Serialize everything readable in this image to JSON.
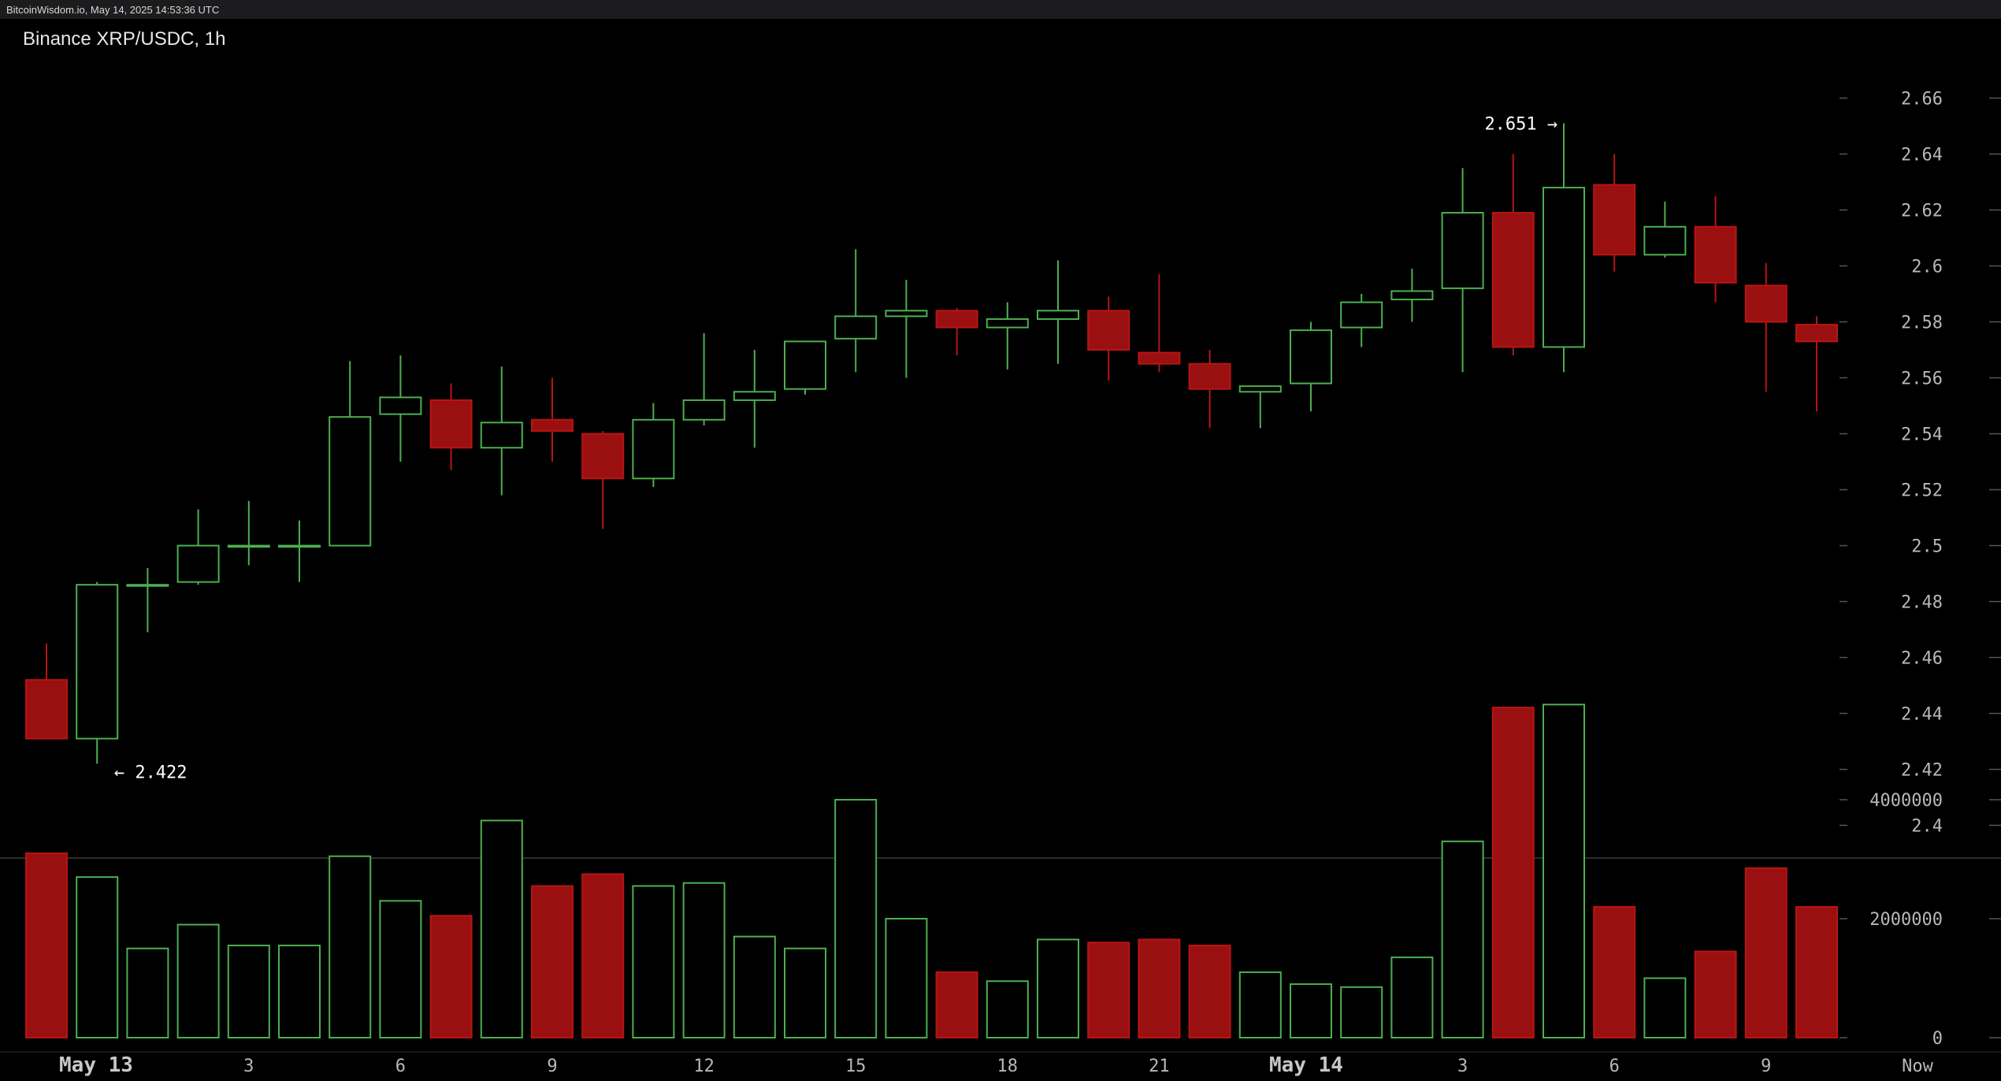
{
  "topbar": {
    "text": "BitcoinWisdom.io, May 14, 2025 14:53:36 UTC"
  },
  "chart_data": {
    "type": "candlestick",
    "title": "Binance XRP/USDC, 1h",
    "colors": {
      "up": "#4caf50",
      "down": "#b71414",
      "down_fill": "#9a1010"
    },
    "ylim": [
      2.39,
      2.672
    ],
    "y_ticks": [
      "2.66",
      "2.64",
      "2.62",
      "2.6",
      "2.58",
      "2.56",
      "2.54",
      "2.52",
      "2.5",
      "2.48",
      "2.46",
      "2.44",
      "2.42",
      "2.4"
    ],
    "volume_ylim": [
      0,
      5800000
    ],
    "volume_ticks": [
      "4000000",
      "2000000",
      "0"
    ],
    "x_ticks": [
      {
        "i": 1,
        "label": "May 13",
        "bold": true
      },
      {
        "i": 4,
        "label": "3"
      },
      {
        "i": 7,
        "label": "6"
      },
      {
        "i": 10,
        "label": "9"
      },
      {
        "i": 13,
        "label": "12"
      },
      {
        "i": 16,
        "label": "15"
      },
      {
        "i": 19,
        "label": "18"
      },
      {
        "i": 22,
        "label": "21"
      },
      {
        "i": 25,
        "label": "May 14",
        "bold": true
      },
      {
        "i": 28,
        "label": "3"
      },
      {
        "i": 31,
        "label": "6"
      },
      {
        "i": 34,
        "label": "9"
      },
      {
        "i": 37,
        "label": "Now"
      }
    ],
    "annotations": [
      {
        "i": 1,
        "value": 2.422,
        "text": "← 2.422",
        "anchor": "low"
      },
      {
        "i": 30,
        "value": 2.651,
        "text": "2.651 →",
        "anchor": "high"
      }
    ],
    "candles": [
      {
        "o": 2.452,
        "h": 2.465,
        "l": 2.431,
        "c": 2.431,
        "v": 3100000
      },
      {
        "o": 2.431,
        "h": 2.487,
        "l": 2.422,
        "c": 2.486,
        "v": 2700000
      },
      {
        "o": 2.486,
        "h": 2.492,
        "l": 2.469,
        "c": 2.486,
        "v": 1500000
      },
      {
        "o": 2.487,
        "h": 2.513,
        "l": 2.486,
        "c": 2.5,
        "v": 1900000
      },
      {
        "o": 2.5,
        "h": 2.516,
        "l": 2.493,
        "c": 2.5,
        "v": 1550000
      },
      {
        "o": 2.5,
        "h": 2.509,
        "l": 2.487,
        "c": 2.5,
        "v": 1550000
      },
      {
        "o": 2.5,
        "h": 2.566,
        "l": 2.5,
        "c": 2.546,
        "v": 3050000
      },
      {
        "o": 2.547,
        "h": 2.568,
        "l": 2.53,
        "c": 2.553,
        "v": 2300000
      },
      {
        "o": 2.552,
        "h": 2.558,
        "l": 2.527,
        "c": 2.535,
        "v": 2050000
      },
      {
        "o": 2.535,
        "h": 2.564,
        "l": 2.518,
        "c": 2.544,
        "v": 3650000
      },
      {
        "o": 2.545,
        "h": 2.56,
        "l": 2.53,
        "c": 2.541,
        "v": 2550000
      },
      {
        "o": 2.54,
        "h": 2.541,
        "l": 2.506,
        "c": 2.524,
        "v": 2750000
      },
      {
        "o": 2.524,
        "h": 2.551,
        "l": 2.521,
        "c": 2.545,
        "v": 2550000
      },
      {
        "o": 2.545,
        "h": 2.576,
        "l": 2.543,
        "c": 2.552,
        "v": 2600000
      },
      {
        "o": 2.552,
        "h": 2.57,
        "l": 2.535,
        "c": 2.555,
        "v": 1700000
      },
      {
        "o": 2.556,
        "h": 2.573,
        "l": 2.554,
        "c": 2.573,
        "v": 1500000
      },
      {
        "o": 2.574,
        "h": 2.606,
        "l": 2.562,
        "c": 2.582,
        "v": 4000000
      },
      {
        "o": 2.582,
        "h": 2.595,
        "l": 2.56,
        "c": 2.584,
        "v": 2000000
      },
      {
        "o": 2.584,
        "h": 2.585,
        "l": 2.568,
        "c": 2.578,
        "v": 1100000
      },
      {
        "o": 2.578,
        "h": 2.587,
        "l": 2.563,
        "c": 2.581,
        "v": 950000
      },
      {
        "o": 2.581,
        "h": 2.602,
        "l": 2.565,
        "c": 2.584,
        "v": 1650000
      },
      {
        "o": 2.584,
        "h": 2.589,
        "l": 2.559,
        "c": 2.57,
        "v": 1600000
      },
      {
        "o": 2.569,
        "h": 2.597,
        "l": 2.562,
        "c": 2.565,
        "v": 1650000
      },
      {
        "o": 2.565,
        "h": 2.57,
        "l": 2.542,
        "c": 2.556,
        "v": 1550000
      },
      {
        "o": 2.555,
        "h": 2.557,
        "l": 2.542,
        "c": 2.557,
        "v": 1100000
      },
      {
        "o": 2.558,
        "h": 2.58,
        "l": 2.548,
        "c": 2.577,
        "v": 900000
      },
      {
        "o": 2.578,
        "h": 2.59,
        "l": 2.571,
        "c": 2.587,
        "v": 850000
      },
      {
        "o": 2.588,
        "h": 2.599,
        "l": 2.58,
        "c": 2.591,
        "v": 1350000
      },
      {
        "o": 2.592,
        "h": 2.635,
        "l": 2.562,
        "c": 2.619,
        "v": 3300000
      },
      {
        "o": 2.619,
        "h": 2.64,
        "l": 2.568,
        "c": 2.571,
        "v": 5550000
      },
      {
        "o": 2.571,
        "h": 2.651,
        "l": 2.562,
        "c": 2.628,
        "v": 5600000
      },
      {
        "o": 2.629,
        "h": 2.64,
        "l": 2.598,
        "c": 2.604,
        "v": 2200000
      },
      {
        "o": 2.604,
        "h": 2.623,
        "l": 2.603,
        "c": 2.614,
        "v": 1000000
      },
      {
        "o": 2.614,
        "h": 2.625,
        "l": 2.587,
        "c": 2.594,
        "v": 1450000
      },
      {
        "o": 2.593,
        "h": 2.601,
        "l": 2.555,
        "c": 2.58,
        "v": 2850000
      },
      {
        "o": 2.579,
        "h": 2.582,
        "l": 2.548,
        "c": 2.573,
        "v": 2200000
      }
    ]
  }
}
